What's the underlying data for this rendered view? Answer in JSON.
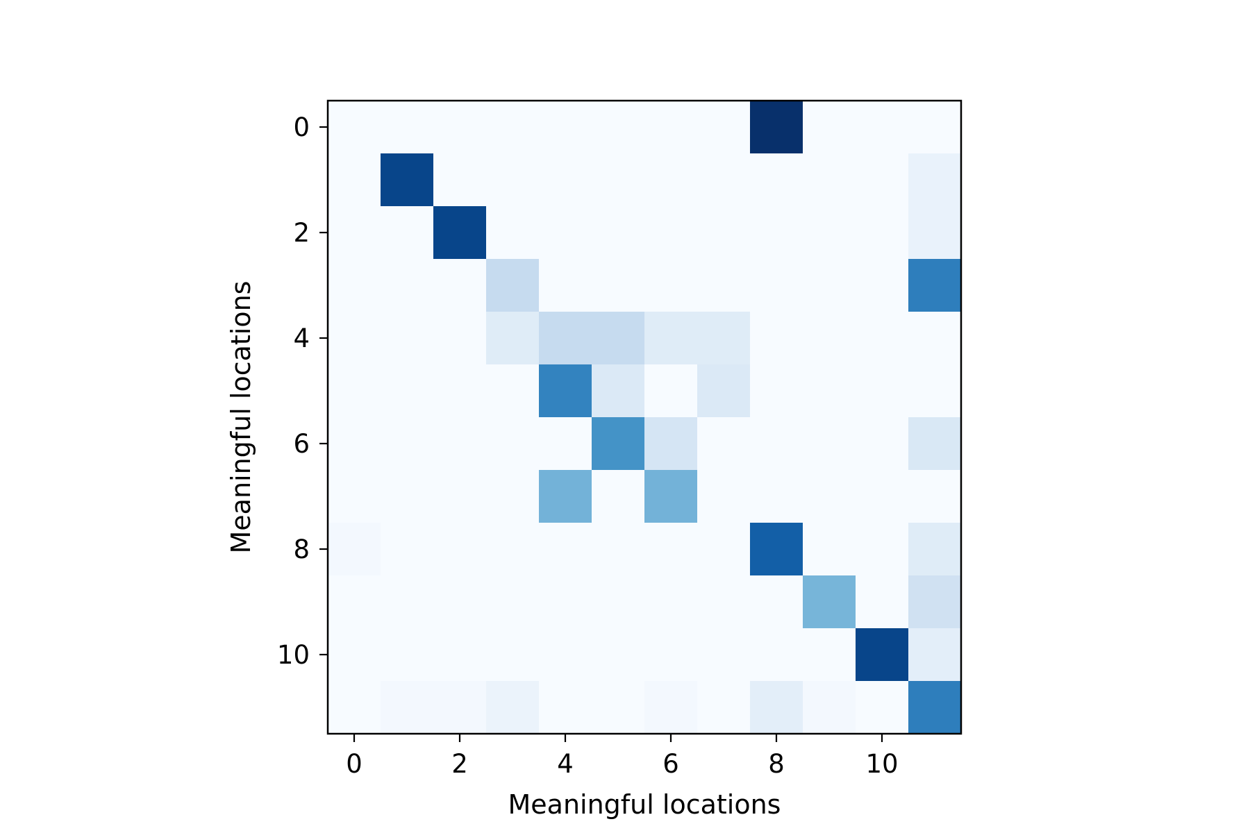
{
  "chart_data": {
    "type": "heatmap",
    "title": "",
    "xlabel": "Meaningful locations",
    "ylabel": "Meaningful locations",
    "x_ticks": [
      0,
      2,
      4,
      6,
      8,
      10
    ],
    "y_ticks": [
      0,
      2,
      4,
      6,
      8,
      10
    ],
    "x_range": [
      -0.5,
      11.5
    ],
    "y_range": [
      -0.5,
      11.5
    ],
    "colormap": "Blues",
    "value_range": [
      0,
      1
    ],
    "grid": false,
    "matrix": [
      [
        0,
        0,
        0,
        0,
        0,
        0,
        0,
        0,
        1.0,
        0,
        0,
        0
      ],
      [
        0,
        0.92,
        0,
        0,
        0,
        0,
        0,
        0,
        0,
        0,
        0,
        0.07
      ],
      [
        0,
        0,
        0.92,
        0,
        0,
        0,
        0,
        0,
        0,
        0,
        0,
        0.07
      ],
      [
        0,
        0,
        0,
        0.25,
        0,
        0,
        0,
        0,
        0,
        0,
        0,
        0.7
      ],
      [
        0,
        0,
        0,
        0.12,
        0.25,
        0.25,
        0.12,
        0.12,
        0,
        0,
        0,
        0
      ],
      [
        0,
        0,
        0,
        0,
        0.68,
        0.14,
        0,
        0.14,
        0,
        0,
        0,
        0
      ],
      [
        0,
        0,
        0,
        0,
        0,
        0.62,
        0.17,
        0,
        0,
        0,
        0,
        0.15
      ],
      [
        0,
        0,
        0,
        0,
        0.48,
        0,
        0.48,
        0,
        0,
        0,
        0,
        0
      ],
      [
        0.02,
        0,
        0,
        0,
        0,
        0,
        0,
        0,
        0.82,
        0,
        0,
        0.12
      ],
      [
        0,
        0,
        0,
        0,
        0,
        0,
        0,
        0,
        0,
        0.47,
        0,
        0.2
      ],
      [
        0,
        0,
        0,
        0,
        0,
        0,
        0,
        0,
        0,
        0,
        0.92,
        0.1
      ],
      [
        0,
        0.02,
        0.02,
        0.06,
        0,
        0,
        0.02,
        0,
        0.1,
        0.02,
        0,
        0.7
      ]
    ]
  }
}
